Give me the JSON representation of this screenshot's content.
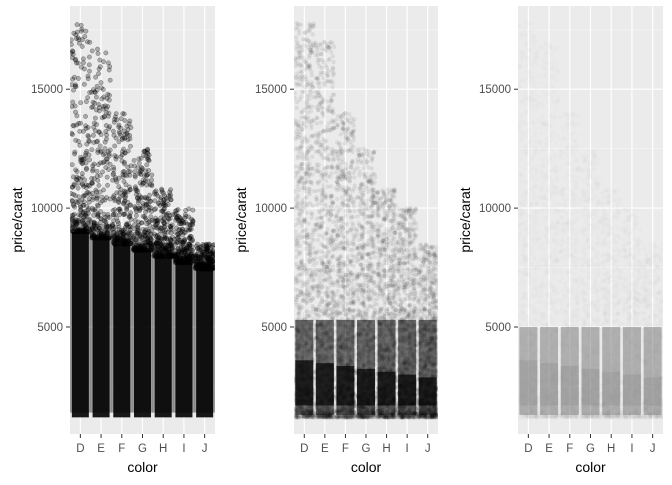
{
  "chart_data": [
    {
      "type": "scatter",
      "xlabel": "color",
      "ylabel": "price/carat",
      "categories": [
        "D",
        "E",
        "F",
        "G",
        "H",
        "I",
        "J"
      ],
      "y_ticks": [
        5000,
        10000,
        15000
      ],
      "ylim": [
        500,
        18500
      ],
      "jitter": true,
      "point_alpha": 0.3,
      "grid": true,
      "max_values": [
        17800,
        17000,
        14000,
        12500,
        10800,
        10000,
        8500
      ],
      "typical_range": [
        1200,
        9000
      ]
    },
    {
      "type": "scatter",
      "xlabel": "color",
      "ylabel": "price/carat",
      "categories": [
        "D",
        "E",
        "F",
        "G",
        "H",
        "I",
        "J"
      ],
      "y_ticks": [
        5000,
        10000,
        15000
      ],
      "ylim": [
        500,
        18500
      ],
      "jitter": true,
      "point_alpha": 0.05,
      "grid": true,
      "max_values": [
        17800,
        17000,
        14000,
        12500,
        10800,
        10000,
        8500
      ],
      "typical_range": [
        1200,
        9000
      ]
    },
    {
      "type": "scatter",
      "xlabel": "color",
      "ylabel": "price/carat",
      "categories": [
        "D",
        "E",
        "F",
        "G",
        "H",
        "I",
        "J"
      ],
      "y_ticks": [
        5000,
        10000,
        15000
      ],
      "ylim": [
        500,
        18500
      ],
      "jitter": true,
      "point_alpha": 0.01,
      "grid": true,
      "max_values": [
        17800,
        17000,
        14000,
        12500,
        10800,
        10000,
        8500
      ],
      "typical_range": [
        1200,
        9000
      ]
    }
  ],
  "colors": {
    "panel_bg": "#EBEBEB",
    "grid_major": "#FFFFFF",
    "axis_text": "#4D4D4D",
    "title_text": "#000000",
    "point": "#000000"
  }
}
